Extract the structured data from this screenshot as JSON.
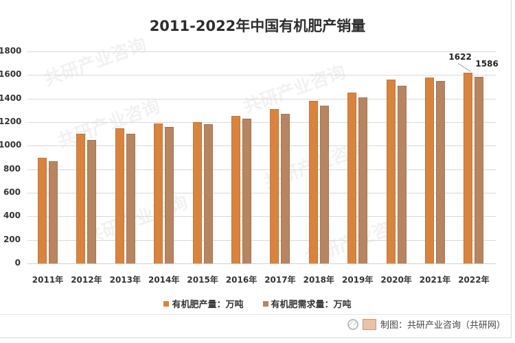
{
  "title": "2011-2022年中国有机肥产销量",
  "chart_data": {
    "type": "bar",
    "title": "2011-2022年中国有机肥产销量",
    "xlabel": "",
    "ylabel": "",
    "ylim": [
      0,
      1800
    ],
    "yticks": [
      0,
      200,
      400,
      600,
      800,
      1000,
      1200,
      1400,
      1600,
      1800
    ],
    "grid": true,
    "legend_position": "bottom",
    "categories": [
      "2011年",
      "2012年",
      "2013年",
      "2014年",
      "2015年",
      "2016年",
      "2017年",
      "2018年",
      "2019年",
      "2020年",
      "2021年",
      "2022年"
    ],
    "series": [
      {
        "name": "有机肥产量：万吨",
        "color": "#d8843f",
        "values": [
          900,
          1100,
          1150,
          1190,
          1200,
          1250,
          1310,
          1380,
          1450,
          1560,
          1580,
          1622
        ]
      },
      {
        "name": "有机肥需求量：万吨",
        "color": "#b78560",
        "values": [
          870,
          1050,
          1100,
          1160,
          1180,
          1230,
          1270,
          1340,
          1410,
          1510,
          1550,
          1586
        ]
      }
    ],
    "annotations": [
      {
        "category": "2022年",
        "series": 0,
        "text": "1622"
      },
      {
        "category": "2022年",
        "series": 1,
        "text": "1586"
      }
    ]
  },
  "legend": [
    {
      "label": "有机肥产量：万吨",
      "color": "#d8843f"
    },
    {
      "label": "有机肥需求量：万吨",
      "color": "#b78560"
    }
  ],
  "footer": {
    "source": "制图：共研产业咨询（共研网）"
  },
  "watermark": "共研产业咨询"
}
